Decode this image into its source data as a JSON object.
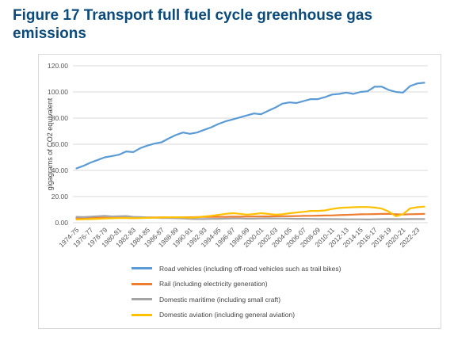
{
  "figure_title": "Figure 17 Transport full fuel cycle greenhouse gas emissions",
  "chart_data": {
    "type": "line",
    "title": "",
    "xlabel": "",
    "ylabel": "gigagrams of CO2 equivalent",
    "ylim": [
      0,
      120
    ],
    "yticks": [
      "0.00",
      "20.00",
      "40.00",
      "60.00",
      "80.00",
      "100.00",
      "120.00"
    ],
    "grid": true,
    "legend_position": "bottom",
    "categories": [
      "1974-75",
      "1975-76",
      "1976-77",
      "1977-78",
      "1978-79",
      "1979-80",
      "1980-81",
      "1981-82",
      "1982-83",
      "1983-84",
      "1984-85",
      "1985-86",
      "1986-87",
      "1987-88",
      "1988-89",
      "1989-90",
      "1990-91",
      "1991-92",
      "1992-93",
      "1993-94",
      "1994-95",
      "1995-96",
      "1996-97",
      "1997-98",
      "1998-99",
      "1999-00",
      "2000-01",
      "2001-02",
      "2002-03",
      "2003-04",
      "2004-05",
      "2005-06",
      "2006-07",
      "2007-08",
      "2008-09",
      "2009-10",
      "2010-11",
      "2011-12",
      "2012-13",
      "2013-14",
      "2014-15",
      "2015-16",
      "2016-17",
      "2017-18",
      "2018-19",
      "2019-20",
      "2020-21",
      "2021-22",
      "2022-23",
      "2023-24"
    ],
    "xtick_labels": [
      "1974-75",
      "1976-77",
      "1978-79",
      "1980-81",
      "1982-83",
      "1984-85",
      "1986-87",
      "1988-89",
      "1990-91",
      "1992-93",
      "1994-95",
      "1996-97",
      "1998-99",
      "2000-01",
      "2002-03",
      "2004-05",
      "2006-07",
      "2008-09",
      "2010-11",
      "2012-13",
      "2014-15",
      "2016-17",
      "2018-19",
      "2020-21",
      "2022-23"
    ],
    "series": [
      {
        "name": "Road vehicles  (including off-road vehicles such as trail bikes)",
        "color": "#5b9bd5",
        "values": [
          41.5,
          43.5,
          46,
          48,
          50,
          51,
          52,
          54.5,
          54,
          57,
          59,
          60.5,
          61.5,
          64.5,
          67,
          69,
          68,
          69,
          71,
          73,
          75.5,
          77.5,
          79,
          80.5,
          82,
          83.5,
          83,
          85.5,
          88,
          91,
          92,
          91.5,
          93,
          94.5,
          94.5,
          96,
          98,
          98.5,
          99.5,
          98.5,
          100,
          100.5,
          104,
          104,
          101.5,
          100,
          99.5,
          104.5,
          106.5,
          107
        ]
      },
      {
        "name": "Rail (including electricity generation)",
        "color": "#ed7d31",
        "values": [
          3.5,
          3.6,
          3.7,
          3.8,
          3.8,
          3.9,
          3.9,
          3.9,
          3.9,
          3.9,
          4,
          4,
          4.1,
          4.1,
          4.2,
          4.2,
          4.2,
          4.3,
          4.4,
          4.4,
          4.5,
          4.5,
          4.6,
          4.6,
          4.7,
          4.7,
          4.8,
          4.8,
          4.9,
          5,
          5,
          5.1,
          5.2,
          5.3,
          5.4,
          5.5,
          5.6,
          5.8,
          6,
          6.2,
          6.4,
          6.5,
          6.6,
          6.7,
          6.8,
          6.5,
          6.3,
          6.5,
          6.6,
          6.7
        ]
      },
      {
        "name": "Domestic maritime (including small craft)",
        "color": "#a5a5a5",
        "values": [
          4.5,
          4.3,
          4.6,
          5,
          5.2,
          4.8,
          5,
          5.1,
          4.5,
          4.3,
          4,
          3.8,
          3.6,
          3.5,
          3.4,
          3.3,
          3,
          2.8,
          2.8,
          2.9,
          3,
          3.1,
          3.2,
          3.2,
          3.1,
          3.1,
          3.2,
          3.3,
          3.3,
          3.2,
          3.1,
          3,
          3,
          2.9,
          2.8,
          2.8,
          2.7,
          2.7,
          2.6,
          2.6,
          2.6,
          2.5,
          2.6,
          2.7,
          2.8,
          2.7,
          2.7,
          2.8,
          2.8,
          2.8
        ]
      },
      {
        "name": "Domestic aviation (including general aviation)",
        "color": "#ffc000",
        "values": [
          2.5,
          2.6,
          2.8,
          3,
          3.2,
          3.4,
          3.5,
          3.6,
          3.4,
          3.5,
          3.7,
          3.8,
          4,
          4.2,
          4.2,
          4.1,
          3.9,
          4.2,
          4.8,
          5.3,
          6,
          6.8,
          7.3,
          6.8,
          6.2,
          6.6,
          7.3,
          6.7,
          6.1,
          6.5,
          7.2,
          7.8,
          8.3,
          9,
          9,
          9.4,
          10.5,
          11.3,
          11.6,
          11.8,
          12,
          12,
          11.6,
          10.8,
          8.5,
          5,
          6.5,
          11,
          11.8,
          12.3
        ]
      }
    ]
  }
}
